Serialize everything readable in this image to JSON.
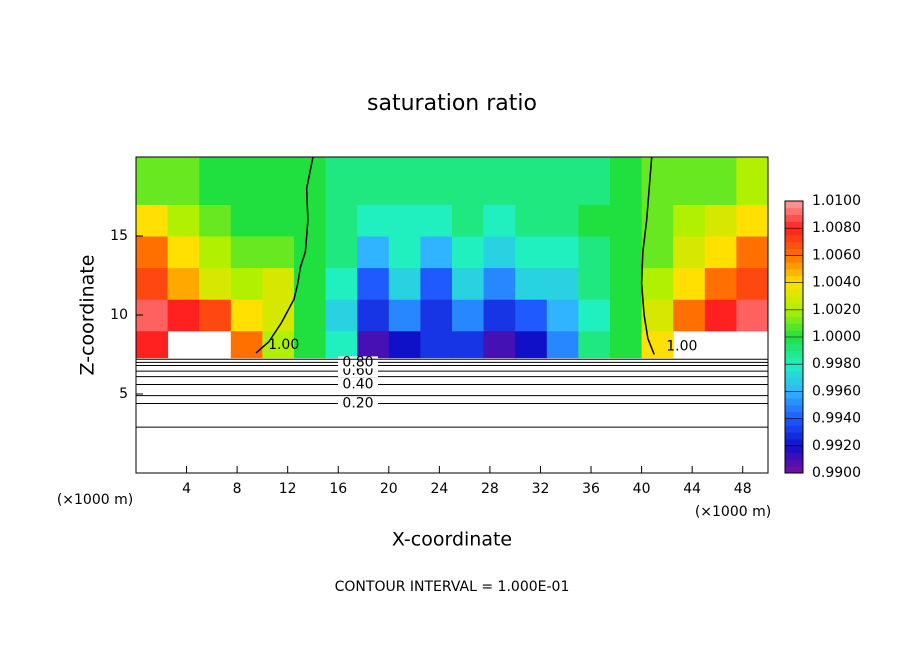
{
  "chart_data": {
    "type": "contour",
    "title": "saturation ratio",
    "xlabel": "X-coordinate",
    "ylabel": "Z-coordinate",
    "x_unit": "(×1000 m)",
    "footer": "CONTOUR INTERVAL = 1.000E-01",
    "xlim": [
      0,
      50
    ],
    "ylim": [
      0,
      20
    ],
    "xticks": [
      4,
      8,
      12,
      16,
      20,
      24,
      28,
      32,
      36,
      40,
      44,
      48
    ],
    "yticks": [
      5,
      10,
      15
    ],
    "clim": [
      0.99,
      1.01
    ],
    "cticks": [
      {
        "value": 1.01,
        "label": "1.0100"
      },
      {
        "value": 1.008,
        "label": "1.0080"
      },
      {
        "value": 1.006,
        "label": "1.0060"
      },
      {
        "value": 1.004,
        "label": "1.0040"
      },
      {
        "value": 1.002,
        "label": "1.0020"
      },
      {
        "value": 1.0,
        "label": "1.0000"
      },
      {
        "value": 0.998,
        "label": "0.9980"
      },
      {
        "value": 0.996,
        "label": "0.9960"
      },
      {
        "value": 0.994,
        "label": "0.9940"
      },
      {
        "value": 0.992,
        "label": "0.9920"
      },
      {
        "value": 0.99,
        "label": "0.9900"
      }
    ],
    "colormap": [
      "#7a0fa0",
      "#1010c8",
      "#1e5aff",
      "#30b4ff",
      "#20f0c0",
      "#20e040",
      "#b0f000",
      "#ffe000",
      "#ff7000",
      "#ff2020",
      "#ffa0a0"
    ],
    "field": {
      "x_edges": [
        0,
        2.5,
        5,
        7.5,
        10,
        12.5,
        15,
        17.5,
        20,
        22.5,
        25,
        27.5,
        30,
        32.5,
        35,
        37.5,
        40,
        42.5,
        45,
        47.5,
        50
      ],
      "z_edges": [
        7.3,
        9,
        11,
        13,
        15,
        17,
        20
      ],
      "values": [
        [
          1.008,
          null,
          null,
          1.006,
          1.002,
          1.0,
          0.998,
          0.991,
          0.992,
          0.993,
          0.993,
          0.991,
          0.992,
          0.995,
          0.999,
          1.0,
          1.004,
          null,
          null,
          null
        ],
        [
          1.009,
          1.008,
          1.007,
          1.004,
          1.003,
          1.0,
          0.997,
          0.993,
          0.995,
          0.993,
          0.995,
          0.993,
          0.994,
          0.996,
          0.998,
          1.0,
          1.003,
          1.006,
          1.008,
          1.009
        ],
        [
          1.007,
          1.005,
          1.003,
          1.002,
          1.003,
          1.0,
          0.998,
          0.994,
          0.997,
          0.994,
          0.997,
          0.995,
          0.997,
          0.997,
          0.999,
          1.0,
          1.002,
          1.004,
          1.006,
          1.007
        ],
        [
          1.006,
          1.004,
          1.002,
          1.001,
          1.001,
          1.0,
          0.999,
          0.996,
          0.998,
          0.996,
          0.998,
          0.997,
          0.998,
          0.998,
          0.999,
          1.0,
          1.001,
          1.003,
          1.004,
          1.006
        ],
        [
          1.004,
          1.002,
          1.001,
          1.0,
          1.0,
          1.0,
          0.999,
          0.998,
          0.998,
          0.998,
          0.999,
          0.998,
          0.999,
          0.999,
          1.0,
          1.0,
          1.001,
          1.002,
          1.003,
          1.004
        ],
        [
          1.001,
          1.001,
          1.0,
          1.0,
          1.0,
          1.0,
          0.999,
          0.999,
          0.999,
          0.999,
          0.999,
          0.999,
          0.999,
          0.999,
          0.999,
          1.0,
          1.001,
          1.001,
          1.001,
          1.002
        ]
      ]
    },
    "level_lines": [
      {
        "z": 2.9
      },
      {
        "z": 4.4,
        "label": "0.20"
      },
      {
        "z": 4.9
      },
      {
        "z": 5.6,
        "label": "0.40"
      },
      {
        "z": 6.1
      },
      {
        "z": 6.45,
        "label": "0.60"
      },
      {
        "z": 6.8
      },
      {
        "z": 7.0,
        "label": "0.80"
      },
      {
        "z": 7.2
      }
    ],
    "contours": [
      {
        "label": "1.00",
        "x": [
          14,
          13.5,
          13.6,
          13.4,
          13,
          12.8,
          12.5,
          11.5,
          10.5,
          9.5
        ],
        "z": [
          20,
          18,
          16,
          14,
          13,
          12,
          11,
          9.5,
          8.3,
          7.6
        ]
      },
      {
        "label": "1.00",
        "x": [
          40.8,
          40.6,
          40.4,
          40.1,
          40,
          40.2,
          40.5,
          41
        ],
        "z": [
          20,
          18,
          16,
          14,
          12,
          10,
          8.5,
          7.5
        ]
      }
    ]
  }
}
